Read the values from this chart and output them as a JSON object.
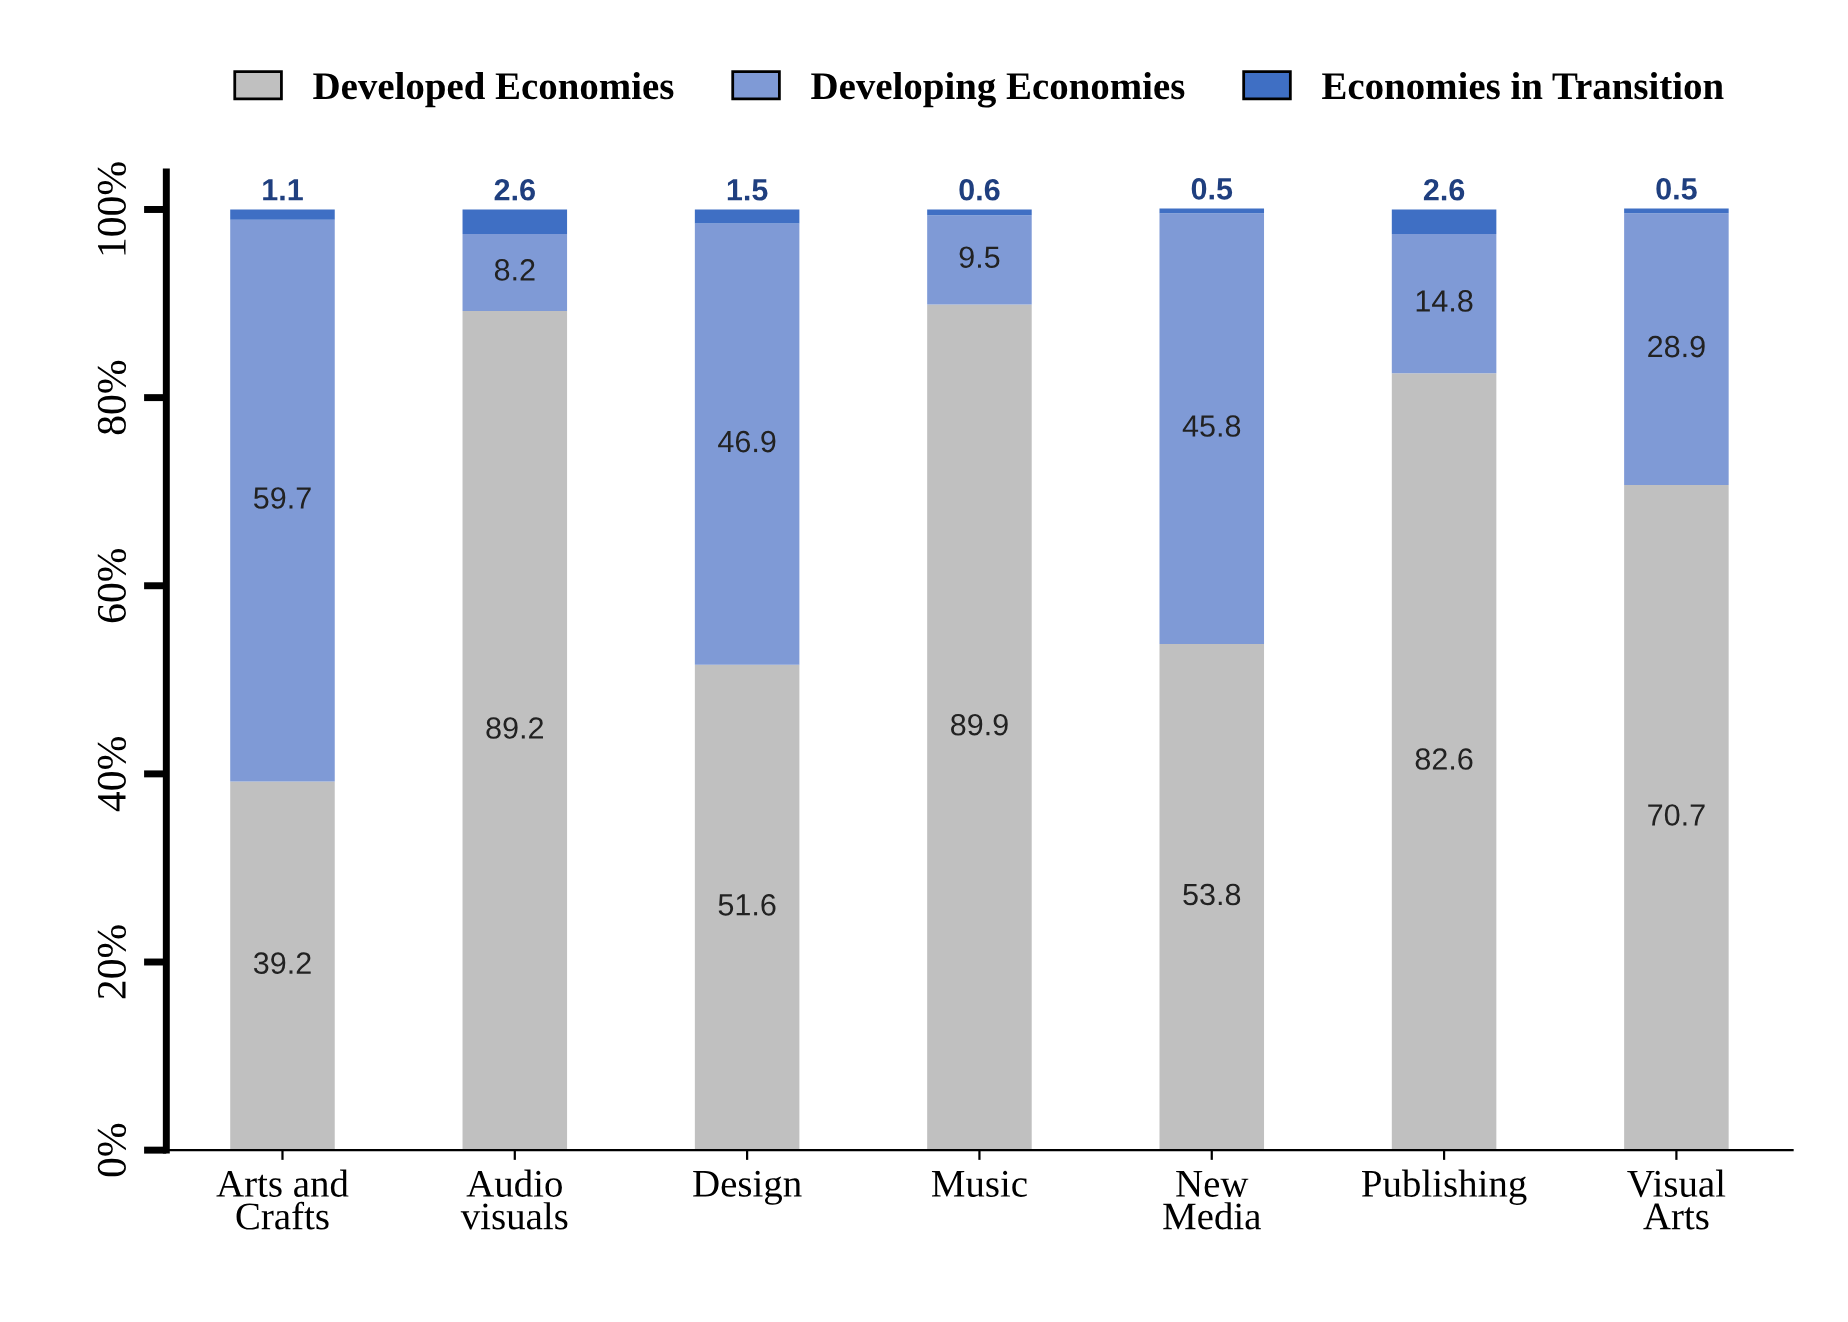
{
  "chart_data": {
    "type": "bar",
    "stacked": true,
    "categories": [
      "Arts and\nCrafts",
      "Audio\nvisuals",
      "Design",
      "Music",
      "New\nMedia",
      "Publishing",
      "Visual\nArts"
    ],
    "series": [
      {
        "name": "Developed Economies",
        "color": "#c0c0c0",
        "values": [
          39.2,
          89.2,
          51.6,
          89.9,
          53.8,
          82.6,
          70.7
        ]
      },
      {
        "name": "Developing Economies",
        "color": "#7f9ad6",
        "values": [
          59.7,
          8.2,
          46.9,
          9.5,
          45.8,
          14.8,
          28.9
        ]
      },
      {
        "name": "Economies in Transition",
        "color": "#3f6fc4",
        "values": [
          1.1,
          2.6,
          1.5,
          0.6,
          0.5,
          2.6,
          0.5
        ]
      }
    ],
    "ylim": [
      0,
      104
    ],
    "yticks": [
      {
        "value": 0,
        "label": "0%"
      },
      {
        "value": 20,
        "label": "20%"
      },
      {
        "value": 40,
        "label": "40%"
      },
      {
        "value": 60,
        "label": "60%"
      },
      {
        "value": 80,
        "label": "80%"
      },
      {
        "value": 100,
        "label": "100%"
      }
    ],
    "data_labels": true,
    "grid": false,
    "legend": "top"
  }
}
